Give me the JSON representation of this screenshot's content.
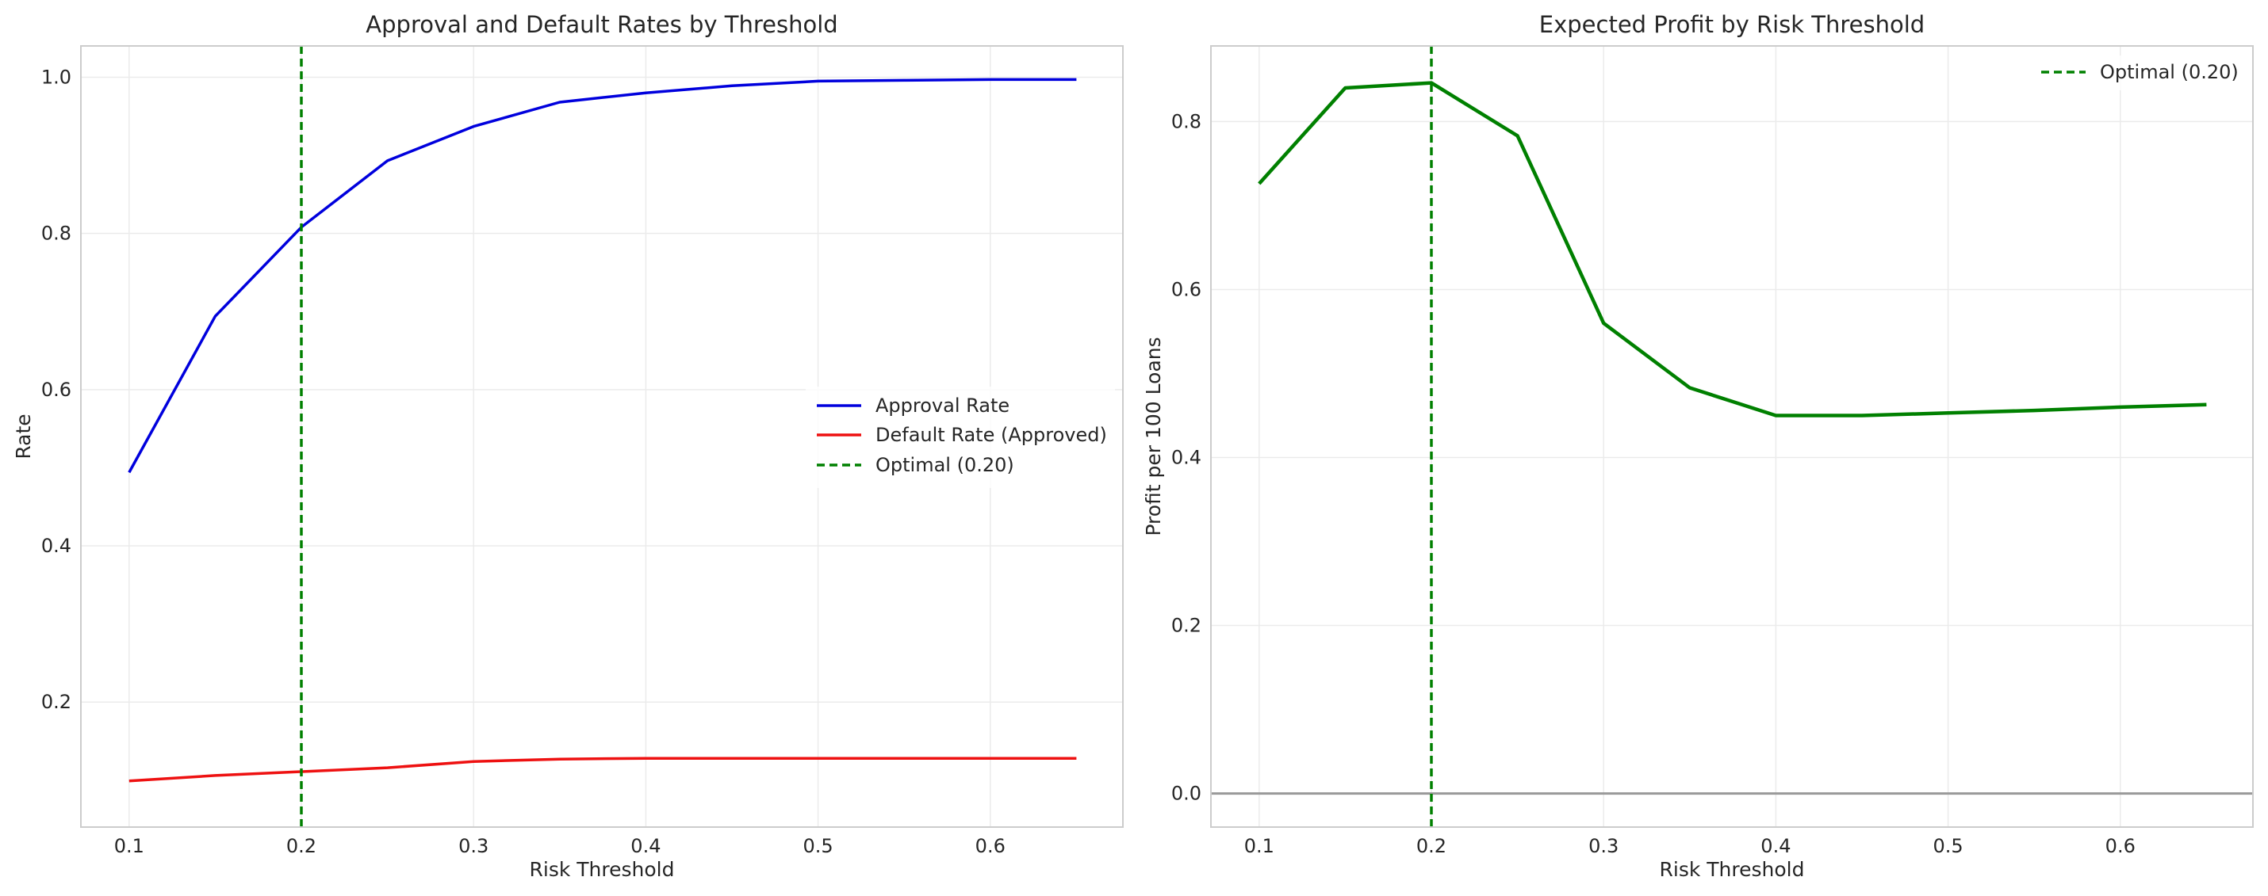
{
  "chart_data": [
    {
      "type": "line",
      "title": "Approval and Default Rates by Threshold",
      "xlabel": "Risk Threshold",
      "ylabel": "Rate",
      "xlim": [
        0.072,
        0.677
      ],
      "ylim": [
        0.04,
        1.04
      ],
      "xticks": [
        "0.1",
        "0.2",
        "0.3",
        "0.4",
        "0.5",
        "0.6"
      ],
      "yticks": [
        "0.2",
        "0.4",
        "0.6",
        "0.8",
        "1.0"
      ],
      "grid": true,
      "legend_position": "center-right",
      "x": [
        0.1,
        0.15,
        0.2,
        0.25,
        0.3,
        0.35,
        0.4,
        0.45,
        0.5,
        0.55,
        0.6,
        0.65
      ],
      "series": [
        {
          "name": "Approval Rate",
          "color": "#0000dd",
          "values": [
            0.494,
            0.694,
            0.808,
            0.893,
            0.937,
            0.968,
            0.98,
            0.989,
            0.995,
            0.996,
            0.997,
            0.997
          ]
        },
        {
          "name": "Default Rate (Approved)",
          "color": "#ee1111",
          "values": [
            0.099,
            0.106,
            0.111,
            0.116,
            0.124,
            0.127,
            0.128,
            0.128,
            0.128,
            0.128,
            0.128,
            0.128
          ]
        }
      ],
      "vline": {
        "name": "Optimal (0.20)",
        "x": 0.2,
        "color": "#008000"
      }
    },
    {
      "type": "line",
      "title": "Expected Profit by Risk Threshold",
      "xlabel": "Risk Threshold",
      "ylabel": "Profit per 100 Loans",
      "xlim": [
        0.072,
        0.677
      ],
      "ylim": [
        -0.04,
        0.89
      ],
      "xticks": [
        "0.1",
        "0.2",
        "0.3",
        "0.4",
        "0.5",
        "0.6"
      ],
      "yticks": [
        "0.0",
        "0.2",
        "0.4",
        "0.6",
        "0.8"
      ],
      "grid": true,
      "legend_position": "top-right",
      "x": [
        0.1,
        0.15,
        0.2,
        0.25,
        0.3,
        0.35,
        0.4,
        0.45,
        0.5,
        0.55,
        0.6,
        0.65
      ],
      "series": [
        {
          "name": "",
          "color": "#008000",
          "values": [
            0.726,
            0.84,
            0.846,
            0.783,
            0.56,
            0.483,
            0.45,
            0.45,
            0.453,
            0.456,
            0.46,
            0.463
          ]
        }
      ],
      "hline": {
        "y": 0.0,
        "color": "#999999"
      },
      "vline": {
        "name": "Optimal (0.20)",
        "x": 0.2,
        "color": "#008000"
      }
    }
  ]
}
